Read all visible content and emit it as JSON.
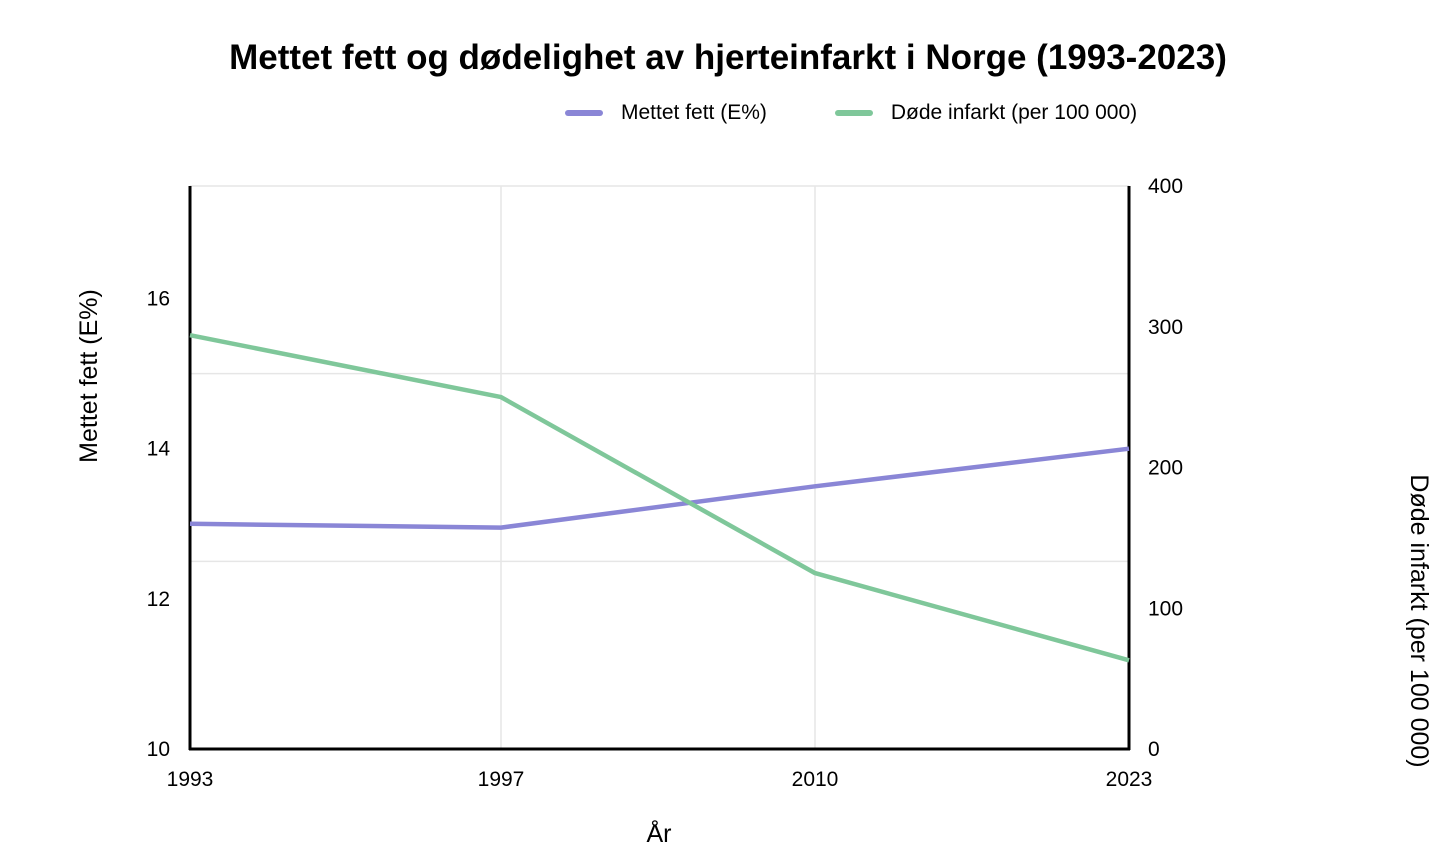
{
  "chart_data": {
    "type": "line",
    "title": "Mettet fett og dødelighet av hjerteinfarkt i Norge (1993-2023)",
    "xlabel": "År",
    "ylabel_left": "Mettet fett (E%)",
    "ylabel_right": "Døde infarkt (per 100 000)",
    "categories": [
      "1993",
      "1997",
      "2010",
      "2023"
    ],
    "ylim_left": [
      10,
      17.5
    ],
    "ylim_right": [
      0,
      400
    ],
    "yticks_left": [
      "10",
      "12",
      "14",
      "16"
    ],
    "yticks_right": [
      "0",
      "100",
      "200",
      "300",
      "400"
    ],
    "grid": true,
    "legend_position": "top",
    "series": [
      {
        "name": "Mettet fett (E%)",
        "axis": "left",
        "color": "#8a86d6",
        "values": [
          13.0,
          12.95,
          13.5,
          14.0
        ]
      },
      {
        "name": "Døde infarkt (per 100 000)",
        "axis": "right",
        "color": "#7fc79a",
        "values": [
          294,
          250,
          125,
          63
        ]
      }
    ]
  }
}
